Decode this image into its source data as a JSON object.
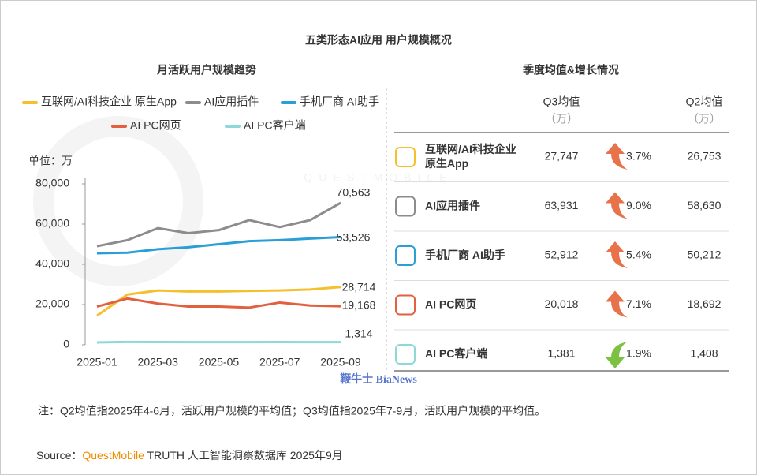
{
  "title": "五类形态AI应用 用户规模概况",
  "chart_data": {
    "type": "line",
    "subtitle": "月活跃用户规模趋势",
    "y_label": "单位：万",
    "categories": [
      "2025-01",
      null,
      "2025-03",
      null,
      "2025-05",
      null,
      "2025-07",
      null,
      "2025-09"
    ],
    "ylim": [
      0,
      80000
    ],
    "yticks": [
      0,
      {
        "value": 20000,
        "label": "20,000"
      },
      {
        "value": 40000,
        "label": "40,000"
      },
      {
        "value": 60000,
        "label": "60,000"
      },
      {
        "value": 80000,
        "label": "80,000"
      }
    ],
    "series": [
      {
        "name": "互联网/AI科技企业 原生App",
        "color": "#f5c02c",
        "values": [
          14500,
          25000,
          27000,
          26500,
          26500,
          26800,
          27000,
          27500,
          28714
        ],
        "value_labels": [
          null,
          null,
          null,
          null,
          null,
          null,
          null,
          null,
          "28,714"
        ]
      },
      {
        "name": "AI应用插件",
        "color": "#8c8c8c",
        "values": [
          49000,
          52000,
          58000,
          55500,
          57000,
          62000,
          58500,
          62000,
          70563
        ],
        "value_labels": [
          null,
          null,
          null,
          null,
          null,
          null,
          null,
          null,
          "70,563"
        ]
      },
      {
        "name": "手机厂商 AI助手",
        "color": "#2a9fd6",
        "values": [
          45500,
          45800,
          47500,
          48500,
          50000,
          51500,
          52000,
          52800,
          53526
        ],
        "value_labels": [
          null,
          null,
          null,
          null,
          null,
          null,
          null,
          null,
          "53,526"
        ]
      },
      {
        "name": "AI PC网页",
        "color": "#e2603f",
        "values": [
          19000,
          23000,
          20500,
          19000,
          19000,
          18500,
          21000,
          19500,
          19168
        ],
        "value_labels": [
          null,
          null,
          null,
          null,
          null,
          null,
          null,
          null,
          "19,168"
        ]
      },
      {
        "name": "AI PC客户端",
        "color": "#8fd8d8",
        "values": [
          1200,
          1400,
          1350,
          1300,
          1300,
          1300,
          1350,
          1300,
          1314
        ],
        "value_labels": [
          null,
          null,
          null,
          null,
          null,
          null,
          null,
          null,
          "1,314"
        ]
      }
    ]
  },
  "table": {
    "title": "季度均值&增长情况",
    "columns": [
      "Q3均值",
      "Q2均值"
    ],
    "unit": "（万）",
    "rows": [
      {
        "name": "互联网/AI科技企业\n原生App",
        "q3": "27,747",
        "change": "3.7%",
        "direction": "up",
        "q2": "26,753"
      },
      {
        "name": "AI应用插件",
        "q3": "63,931",
        "change": "9.0%",
        "direction": "up",
        "q2": "58,630"
      },
      {
        "name": "手机厂商 AI助手",
        "q3": "52,912",
        "change": "5.4%",
        "direction": "up",
        "q2": "50,212"
      },
      {
        "name": "AI PC网页",
        "q3": "20,018",
        "change": "7.1%",
        "direction": "up",
        "q2": "18,692"
      },
      {
        "name": "AI PC客户端",
        "q3": "1,381",
        "change": "1.9%",
        "direction": "down",
        "q2": "1,408"
      }
    ]
  },
  "note": "注：Q2均值指2025年4-6月，活跃用户规模的平均值；Q3均值指2025年7-9月，活跃用户规模的平均值。",
  "source": {
    "prefix": "Source：",
    "brand": "QuestMobile",
    "rest": " TRUTH 人工智能洞察数据库 2025年9月"
  },
  "watermarks": [
    "QUESTMOBILE",
    "鞭牛士 BiaNews"
  ]
}
